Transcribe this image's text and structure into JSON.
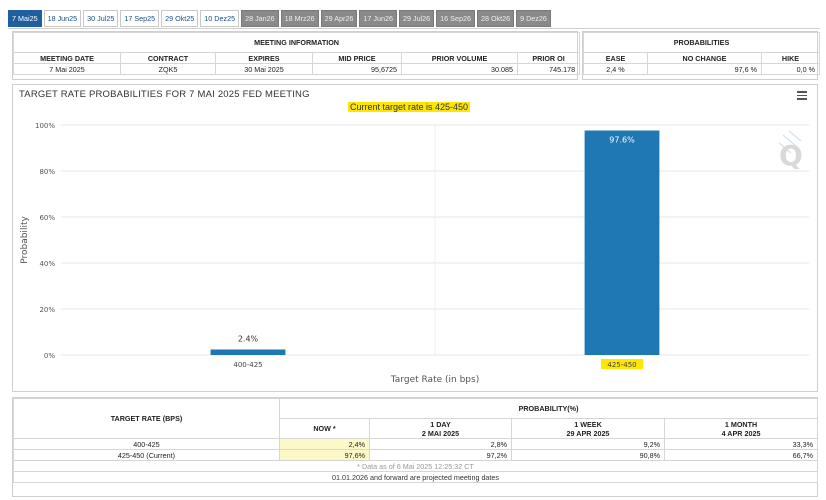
{
  "tabs": [
    {
      "label": "7 Mai25",
      "state": "active"
    },
    {
      "label": "18 Jun25",
      "state": "normal"
    },
    {
      "label": "30 Jul25",
      "state": "normal"
    },
    {
      "label": "17 Sep25",
      "state": "normal"
    },
    {
      "label": "29 Okt25",
      "state": "normal"
    },
    {
      "label": "10 Dez25",
      "state": "normal"
    },
    {
      "label": "28 Jan26",
      "state": "future"
    },
    {
      "label": "18 Mrz26",
      "state": "future"
    },
    {
      "label": "29 Apr26",
      "state": "future"
    },
    {
      "label": "17 Jun26",
      "state": "future"
    },
    {
      "label": "29 Jul26",
      "state": "future"
    },
    {
      "label": "16 Sep26",
      "state": "future"
    },
    {
      "label": "28 Okt26",
      "state": "future"
    },
    {
      "label": "9 Dez26",
      "state": "future"
    }
  ],
  "meeting_info": {
    "section_title": "MEETING INFORMATION",
    "headers": [
      "MEETING DATE",
      "CONTRACT",
      "EXPIRES",
      "MID PRICE",
      "PRIOR VOLUME",
      "PRIOR OI"
    ],
    "values": [
      "7 Mai 2025",
      "ZQK5",
      "30 Mai 2025",
      "95,6725",
      "30.085",
      "745.178"
    ]
  },
  "probabilities": {
    "section_title": "PROBABILITIES",
    "headers": [
      "EASE",
      "NO CHANGE",
      "HIKE"
    ],
    "values": [
      "2,4 %",
      "97,6 %",
      "0,0 %"
    ]
  },
  "chart_data": {
    "type": "bar",
    "title": "TARGET RATE PROBABILITIES FOR 7 MAI 2025 FED MEETING",
    "subtitle": "Current target rate is 425-450",
    "xlabel": "Target Rate (in bps)",
    "ylabel": "Probability",
    "categories": [
      "400-425",
      "425-450"
    ],
    "values": [
      2.4,
      97.6
    ],
    "data_labels": [
      "2.4%",
      "97.6%"
    ],
    "ylim": [
      0,
      100
    ],
    "yticks": [
      "0%",
      "20%",
      "40%",
      "60%",
      "80%",
      "100%"
    ],
    "highlight_category": "425-450",
    "bar_color": "#1f77b4",
    "grid": true,
    "legend": "none"
  },
  "bottom_table": {
    "target_header": "TARGET RATE (BPS)",
    "prob_header": "PROBABILITY(%)",
    "cols": [
      {
        "line1": "NOW *",
        "line2": ""
      },
      {
        "line1": "1 DAY",
        "line2": "2 MAI 2025"
      },
      {
        "line1": "1 WEEK",
        "line2": "29 APR 2025"
      },
      {
        "line1": "1 MONTH",
        "line2": "4 APR 2025"
      }
    ],
    "rows": [
      {
        "rate": "400-425",
        "now": "2,4%",
        "day": "2,8%",
        "week": "9,2%",
        "month": "33,3%"
      },
      {
        "rate": "425-450 (Current)",
        "now": "97,6%",
        "day": "97,2%",
        "week": "90,8%",
        "month": "66,7%"
      }
    ],
    "data_note": "* Data as of 6 Mai 2025 12:25:32 CT",
    "projected_note": "01.01.2026 and forward are projected meeting dates"
  },
  "icons": {
    "menu": "hamburger-menu-icon",
    "logo": "cme-q-logo"
  }
}
